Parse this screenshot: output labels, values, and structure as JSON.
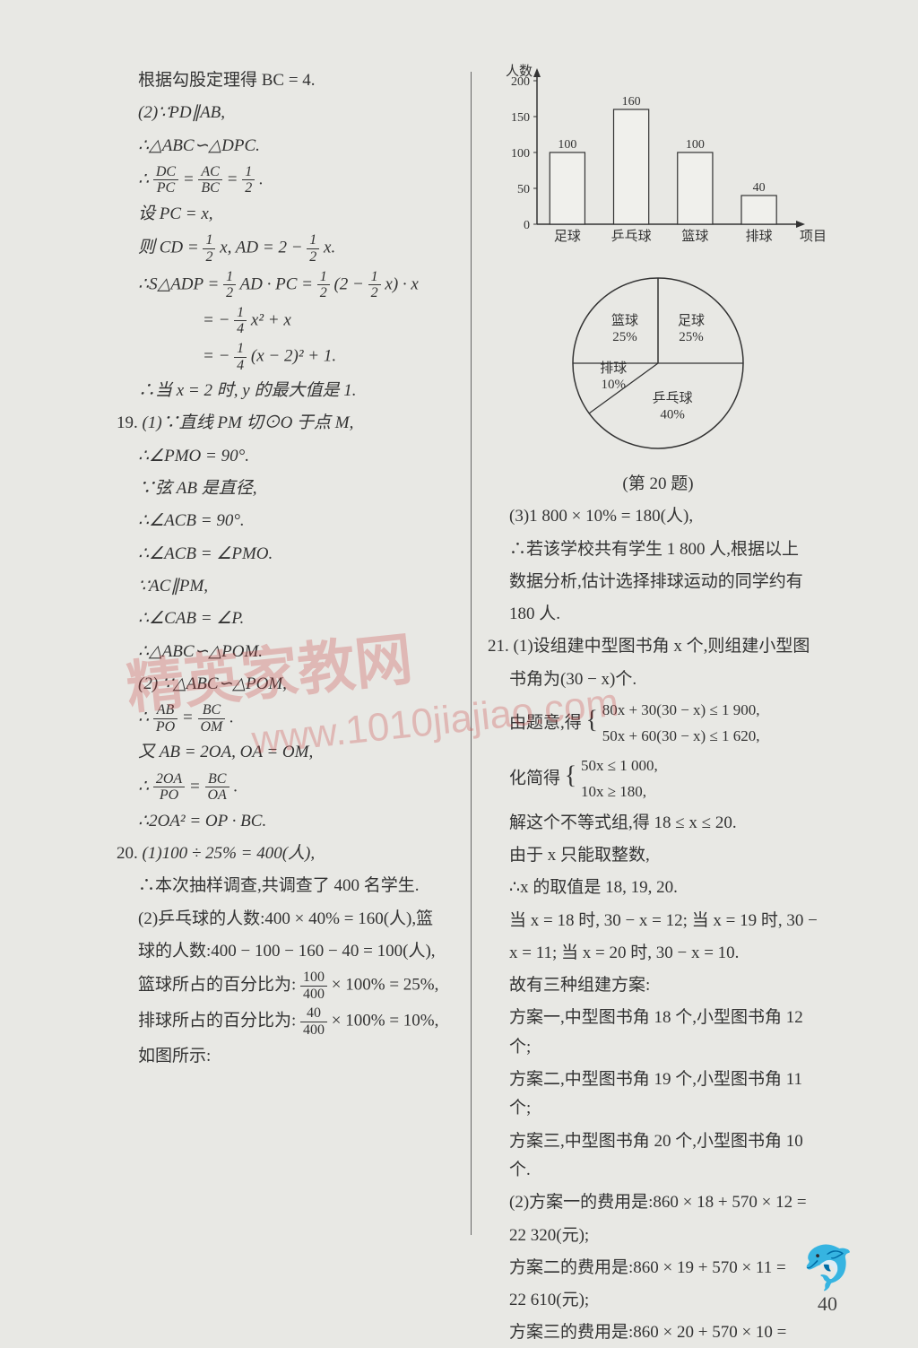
{
  "left": {
    "l1": "根据勾股定理得 BC = 4.",
    "l2": "(2)∵PD∥AB,",
    "l3": "∴△ABC∽△DPC.",
    "l4a": "∴",
    "frac_dc_pc": {
      "num": "DC",
      "den": "PC"
    },
    "eq": "=",
    "frac_ac_bc": {
      "num": "AC",
      "den": "BC"
    },
    "frac_1_2": {
      "num": "1",
      "den": "2"
    },
    "l4b": ".",
    "l5": "设 PC = x,",
    "l6a": "则 CD =",
    "l6b": "x, AD = 2 −",
    "l6c": "x.",
    "l7a": "∴S△ADP =",
    "l7b": "AD · PC =",
    "l7c": "(2 −",
    "l7d": "x) · x",
    "l8a": "= −",
    "frac_1_4": {
      "num": "1",
      "den": "4"
    },
    "l8b": "x² + x",
    "l9a": "= −",
    "l9b": "(x − 2)² + 1.",
    "l10": "∴当 x = 2 时, y 的最大值是 1.",
    "p19": "19.",
    "l11": "(1)∵直线 PM 切⊙O 于点 M,",
    "l12": "∴∠PMO = 90°.",
    "l13": "∵弦 AB 是直径,",
    "l14": "∴∠ACB = 90°.",
    "l15": "∴∠ACB = ∠PMO.",
    "l16": "∵AC∥PM,",
    "l17": "∴∠CAB = ∠P.",
    "l18": "∴△ABC∽△POM.",
    "l19": "(2) ∵△ABC∽△POM,",
    "l20a": "∴",
    "frac_ab_po": {
      "num": "AB",
      "den": "PO"
    },
    "frac_bc_om": {
      "num": "BC",
      "den": "OM"
    },
    "l20b": ".",
    "l21": "又 AB = 2OA, OA = OM,",
    "l22a": "∴",
    "frac_2oa_po": {
      "num": "2OA",
      "den": "PO"
    },
    "frac_bc_oa": {
      "num": "BC",
      "den": "OA"
    },
    "l22b": ".",
    "l23": "∴2OA² = OP · BC.",
    "p20": "20.",
    "l24": "(1)100 ÷ 25% = 400(人),",
    "l25": "∴本次抽样调查,共调查了 400 名学生.",
    "l26": "(2)乒乓球的人数:400 × 40% = 160(人),篮",
    "l27": "球的人数:400 − 100 − 160 − 40 = 100(人),",
    "l28a": "篮球所占的百分比为:",
    "frac_100_400": {
      "num": "100",
      "den": "400"
    },
    "l28b": "× 100% = 25%,",
    "l29a": "排球所占的百分比为:",
    "frac_40_400": {
      "num": "40",
      "den": "400"
    },
    "l29b": "× 100% = 10%,",
    "l30": "如图所示:"
  },
  "bar_chart": {
    "ylabel": "人数",
    "xlabel": "项目",
    "y_ticks": [
      "0",
      "50",
      "100",
      "150",
      "200"
    ],
    "categories": [
      "足球",
      "乒乓球",
      "篮球",
      "排球"
    ],
    "values": [
      100,
      160,
      100,
      40
    ],
    "value_labels": [
      "100",
      "160",
      "100",
      "40"
    ],
    "bar_color": "#f0f0ec",
    "stroke": "#333333",
    "bg": "transparent"
  },
  "pie_chart": {
    "caption": "(第 20 题)",
    "slices": [
      {
        "label": "足球",
        "pct": "25%",
        "value": 25
      },
      {
        "label": "乒乓球",
        "pct": "40%",
        "value": 40
      },
      {
        "label": "排球",
        "pct": "10%",
        "value": 10
      },
      {
        "label": "篮球",
        "pct": "25%",
        "value": 25
      }
    ],
    "stroke": "#333333",
    "fill": "#e8e8e4"
  },
  "right": {
    "l1": "(3)1 800 × 10% = 180(人),",
    "l2": "∴若该学校共有学生 1 800 人,根据以上",
    "l3": "数据分析,估计选择排球运动的同学约有",
    "l4": "180 人.",
    "p21": "21.",
    "l5": "(1)设组建中型图书角 x 个,则组建小型图",
    "l6": "书角为(30 − x)个.",
    "l7": "由题意,得",
    "sys1a": "80x + 30(30 − x) ≤ 1 900,",
    "sys1b": "50x + 60(30 − x) ≤ 1 620,",
    "l8": "化简得",
    "sys2a": "50x ≤ 1 000,",
    "sys2b": "10x ≥ 180,",
    "l9": "解这个不等式组,得 18 ≤ x ≤ 20.",
    "l10": "由于 x 只能取整数,",
    "l11": "∴x 的取值是 18, 19, 20.",
    "l12": "当 x = 18 时, 30 − x = 12; 当 x = 19 时, 30 −",
    "l13": "x = 11; 当 x = 20 时, 30 − x = 10.",
    "l14": "故有三种组建方案:",
    "l15": "方案一,中型图书角 18 个,小型图书角 12 个;",
    "l16": "方案二,中型图书角 19 个,小型图书角 11 个;",
    "l17": "方案三,中型图书角 20 个,小型图书角 10 个.",
    "l18": "(2)方案一的费用是:860 × 18 + 570 × 12 =",
    "l19": "22 320(元);",
    "l20": "方案二的费用是:860 × 19 + 570 × 11 =",
    "l21": "22 610(元);",
    "l22": "方案三的费用是:860 × 20 + 570 × 10 ="
  },
  "watermark": {
    "text1": "精英家教网",
    "text2": "www.1010jiajiao.com"
  },
  "page_number": "40"
}
